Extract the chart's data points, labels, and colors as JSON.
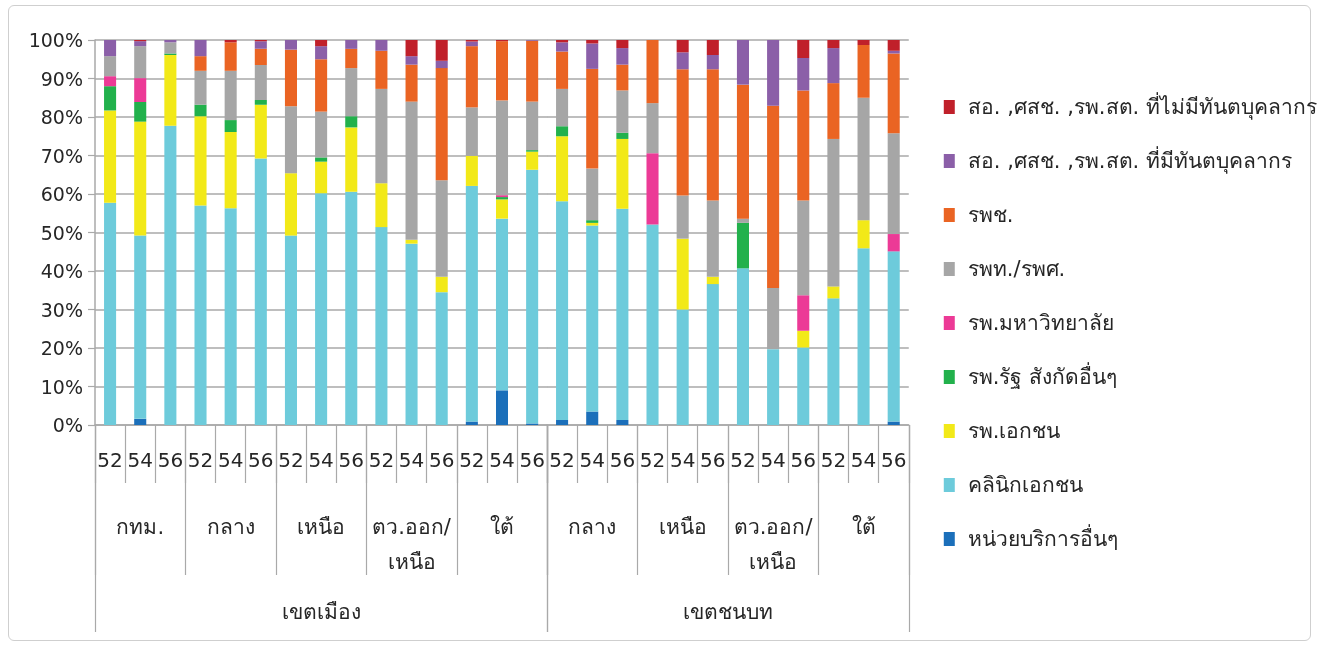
{
  "chart_data": [
    {
      "type": "bar",
      "stacked": true,
      "categories": [
        "52",
        "54",
        "56",
        "52",
        "54",
        "56",
        "52",
        "54",
        "56",
        "52",
        "54",
        "56",
        "52",
        "54",
        "56"
      ],
      "annotations": [
        "กทม.",
        "กลาง",
        "เหนือ",
        "ตว.ออก/\nเหนือ",
        "ใต้"
      ],
      "xlabel": "เขตเมือง",
      "ylim": [
        0,
        100
      ],
      "yticks": [
        {
          "value": 0,
          "label": "0%"
        },
        {
          "value": 10,
          "label": "10%"
        },
        {
          "value": 20,
          "label": "20%"
        },
        {
          "value": 30,
          "label": "30%"
        },
        {
          "value": 40,
          "label": "40%"
        },
        {
          "value": 50,
          "label": "50%"
        },
        {
          "value": 60,
          "label": "60%"
        },
        {
          "value": 70,
          "label": "70%"
        },
        {
          "value": 80,
          "label": "80%"
        },
        {
          "value": 90,
          "label": "90%"
        },
        {
          "value": 100,
          "label": "100%"
        }
      ],
      "grid": "y",
      "legend": false,
      "series": [
        {
          "color": "#1b6fba",
          "values": [
            null,
            1.6,
            null,
            null,
            null,
            null,
            null,
            null,
            null,
            null,
            null,
            null,
            0.9,
            9.0,
            0.4
          ]
        },
        {
          "color": "#6dcbdb",
          "values": [
            57.7,
            47.6,
            77.7,
            57.0,
            56.3,
            69.2,
            49.2,
            60.2,
            60.6,
            51.4,
            47.1,
            34.5,
            61.2,
            44.6,
            65.9
          ]
        },
        {
          "color": "#f2e918",
          "values": [
            24.0,
            29.6,
            18.4,
            23.2,
            19.8,
            14.0,
            16.2,
            8.2,
            16.7,
            11.4,
            1.0,
            4.0,
            7.8,
            5.0,
            4.7
          ]
        },
        {
          "color": "#22b14c",
          "values": [
            6.3,
            5.1,
            0.4,
            3.0,
            3.1,
            1.2,
            null,
            1.1,
            2.9,
            null,
            null,
            null,
            null,
            0.6,
            0.4
          ]
        },
        {
          "color": "#ec3a96",
          "values": [
            2.6,
            6.2,
            null,
            null,
            null,
            null,
            null,
            null,
            null,
            null,
            null,
            null,
            null,
            0.5,
            null
          ]
        },
        {
          "color": "#a6a6a6",
          "values": [
            5.2,
            8.3,
            2.9,
            8.8,
            12.8,
            9.1,
            17.4,
            11.9,
            12.5,
            24.5,
            35.9,
            25.1,
            12.6,
            24.6,
            12.6
          ]
        },
        {
          "color": "#ea6423",
          "values": [
            null,
            null,
            null,
            3.8,
            7.4,
            4.2,
            14.7,
            13.6,
            5.0,
            9.9,
            9.6,
            29.1,
            15.9,
            15.4,
            15.8
          ]
        },
        {
          "color": "#8b5fa8",
          "values": [
            4.2,
            1.3,
            0.6,
            4.2,
            null,
            2.0,
            2.5,
            3.4,
            2.3,
            2.8,
            2.2,
            1.9,
            1.2,
            null,
            0.2
          ]
        },
        {
          "color": "#c0202a",
          "values": [
            null,
            0.3,
            null,
            null,
            0.6,
            0.3,
            null,
            1.6,
            null,
            null,
            4.2,
            5.4,
            0.4,
            0.3,
            null
          ]
        }
      ]
    },
    {
      "type": "bar",
      "stacked": true,
      "categories": [
        "52",
        "54",
        "56",
        "52",
        "54",
        "56",
        "52",
        "54",
        "56",
        "52",
        "54",
        "56"
      ],
      "annotations": [
        "กลาง",
        "เหนือ",
        "ตว.ออก/\nเหนือ",
        "ใต้"
      ],
      "xlabel": "เขตชนบท",
      "ylim": [
        0,
        100
      ],
      "yticks": [
        0,
        10,
        20,
        30,
        40,
        50,
        60,
        70,
        80,
        90,
        100
      ],
      "tick_labels": "x",
      "grid": "y",
      "legend": "right",
      "series": [
        {
          "name": "หน่วยบริการอื่นๆ",
          "color": "#1b6fba",
          "values": [
            1.3,
            3.5,
            1.3,
            null,
            null,
            null,
            null,
            null,
            null,
            null,
            null,
            0.9
          ]
        },
        {
          "name": "คลินิกเอกชน",
          "color": "#6dcbdb",
          "values": [
            56.8,
            48.3,
            54.9,
            52.1,
            30.0,
            36.6,
            40.7,
            19.7,
            20.1,
            32.9,
            45.9,
            44.2
          ]
        },
        {
          "name": "รพ.เอกชน",
          "color": "#f2e918",
          "values": [
            16.9,
            0.7,
            18.1,
            null,
            18.4,
            1.9,
            null,
            null,
            4.4,
            3.1,
            7.3,
            null
          ]
        },
        {
          "name": "รพ.รัฐ สังกัดอื่นๆ",
          "color": "#22b14c",
          "values": [
            2.6,
            0.7,
            1.6,
            null,
            null,
            null,
            11.8,
            null,
            null,
            null,
            null,
            null
          ]
        },
        {
          "name": "รพ.มหาวิทยาลัย",
          "color": "#ec3a96",
          "values": [
            null,
            null,
            null,
            18.5,
            null,
            null,
            null,
            null,
            9.2,
            null,
            null,
            4.5
          ]
        },
        {
          "name": "รพท./รพศ.",
          "color": "#a6a6a6",
          "values": [
            9.7,
            13.4,
            11.0,
            13.0,
            11.2,
            19.8,
            1.1,
            15.9,
            24.6,
            38.3,
            31.8,
            26.2
          ]
        },
        {
          "name": "รพช.",
          "color": "#ea6423",
          "values": [
            9.7,
            25.9,
            6.7,
            16.4,
            32.8,
            34.1,
            34.8,
            47.3,
            28.6,
            14.5,
            13.7,
            20.7
          ]
        },
        {
          "name": "สอ. ,ศสช. ,รพ.สต. ที่มีทันตบุคลากร",
          "color": "#8b5fa8",
          "values": [
            2.4,
            6.6,
            4.3,
            null,
            4.4,
            3.7,
            11.6,
            17.1,
            8.4,
            9.1,
            null,
            0.7
          ]
        },
        {
          "name": "สอ. ,ศสช. ,รพ.สต. ที่ไม่มีทันตบุคลากร",
          "color": "#c0202a",
          "values": [
            0.6,
            0.9,
            2.1,
            null,
            3.2,
            3.9,
            null,
            null,
            4.7,
            2.1,
            1.3,
            2.8
          ]
        }
      ]
    }
  ]
}
